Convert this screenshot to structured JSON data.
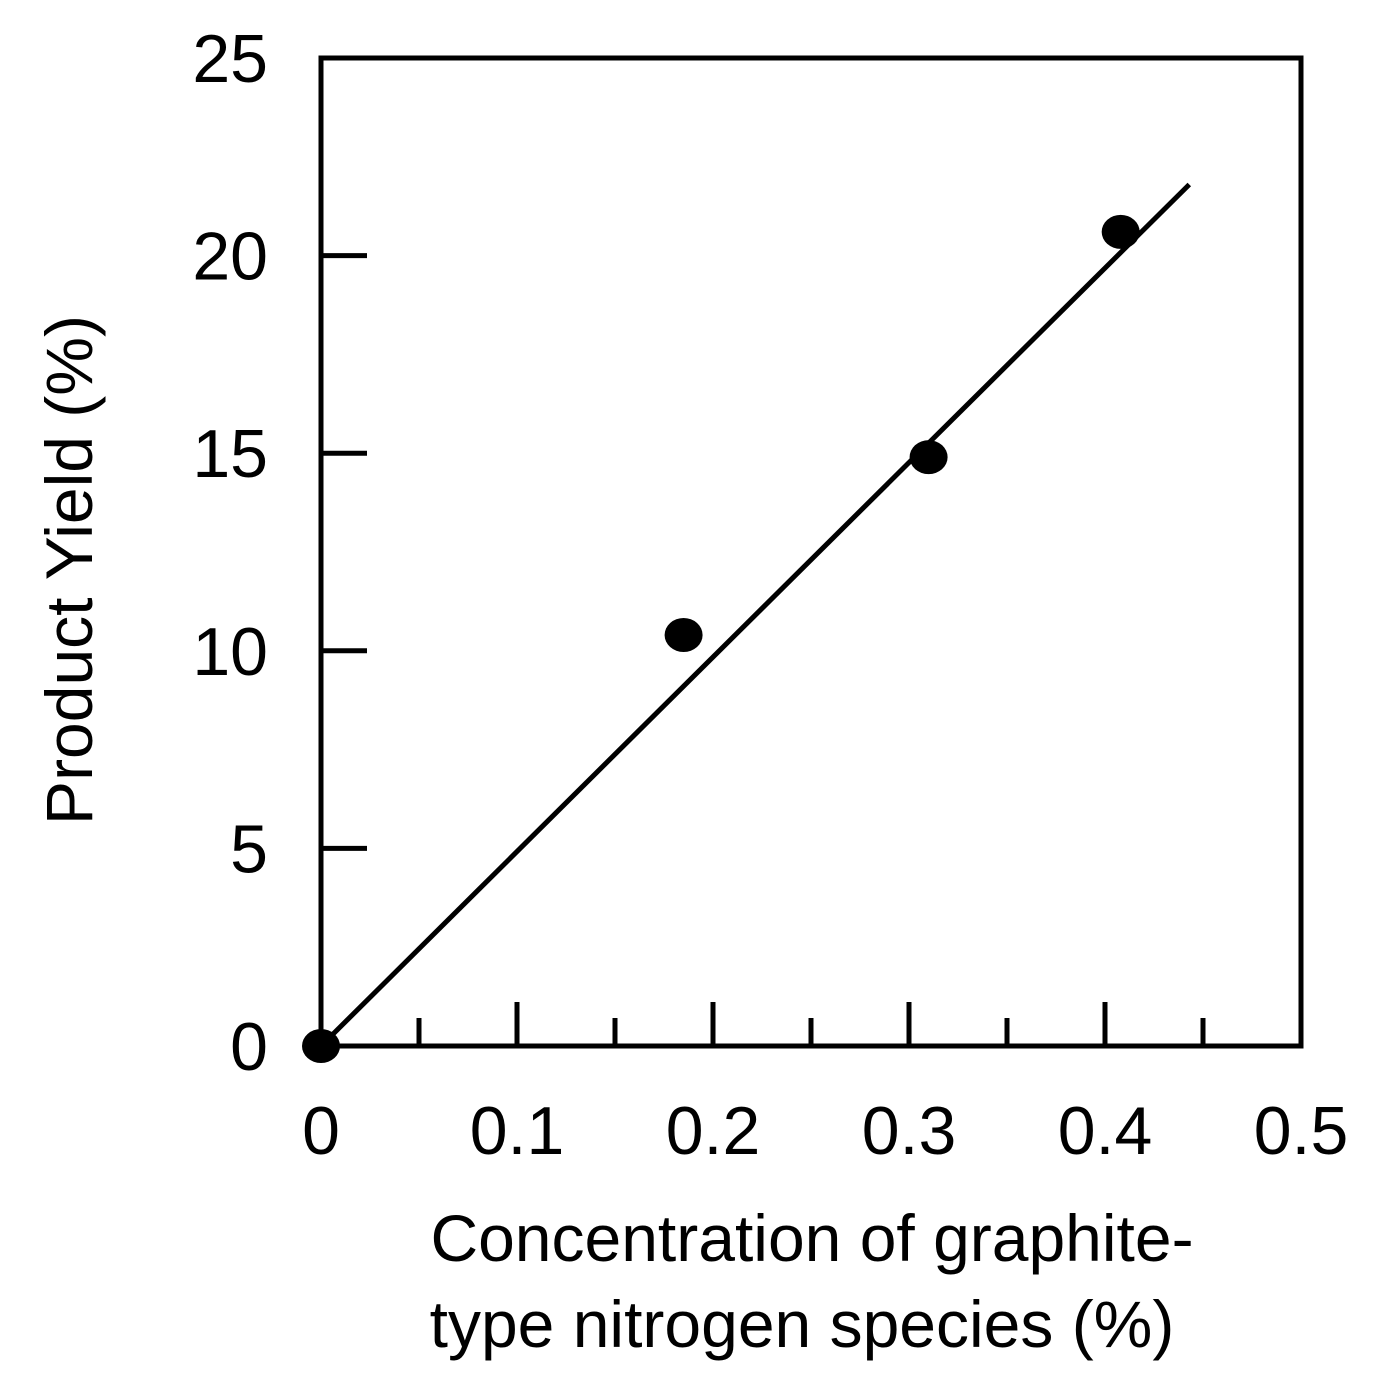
{
  "chart_data": {
    "type": "scatter",
    "title": "",
    "xlabel_lines": [
      "Concentration of graphite-",
      "type nitrogen species (%)"
    ],
    "ylabel": "Product Yield (%)",
    "xlim": [
      0,
      0.5
    ],
    "ylim": [
      0,
      25
    ],
    "x_ticks": [
      "0",
      "0.1",
      "0.2",
      "0.3",
      "0.4",
      "0.5"
    ],
    "y_ticks": [
      "0",
      "5",
      "10",
      "15",
      "20",
      "25"
    ],
    "x_minor_step": 0.05,
    "grid": false,
    "legend": "none",
    "marker_color": "#000000",
    "points": [
      {
        "x": 0.0,
        "y": 0.0
      },
      {
        "x": 0.185,
        "y": 10.4
      },
      {
        "x": 0.31,
        "y": 14.9
      },
      {
        "x": 0.408,
        "y": 20.6
      }
    ],
    "fit_line": {
      "x": [
        0.0,
        0.443
      ],
      "y": [
        0.0,
        21.8
      ]
    }
  }
}
